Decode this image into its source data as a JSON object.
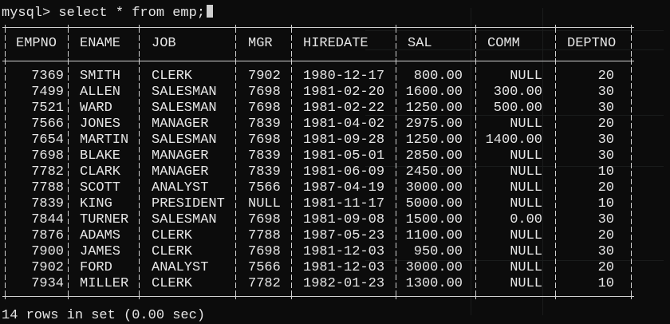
{
  "terminal": {
    "prompt": "mysql> select * from emp;",
    "status": "14 rows in set (0.00 sec)"
  },
  "table": {
    "columns": [
      "EMPNO",
      "ENAME",
      "JOB",
      "MGR",
      "HIREDATE",
      "SAL",
      "COMM",
      "DEPTNO"
    ],
    "rows": [
      [
        "7369",
        "SMITH",
        "CLERK",
        "7902",
        "1980-12-17",
        "800.00",
        "NULL",
        "20"
      ],
      [
        "7499",
        "ALLEN",
        "SALESMAN",
        "7698",
        "1981-02-20",
        "1600.00",
        "300.00",
        "30"
      ],
      [
        "7521",
        "WARD",
        "SALESMAN",
        "7698",
        "1981-02-22",
        "1250.00",
        "500.00",
        "30"
      ],
      [
        "7566",
        "JONES",
        "MANAGER",
        "7839",
        "1981-04-02",
        "2975.00",
        "NULL",
        "20"
      ],
      [
        "7654",
        "MARTIN",
        "SALESMAN",
        "7698",
        "1981-09-28",
        "1250.00",
        "1400.00",
        "30"
      ],
      [
        "7698",
        "BLAKE",
        "MANAGER",
        "7839",
        "1981-05-01",
        "2850.00",
        "NULL",
        "30"
      ],
      [
        "7782",
        "CLARK",
        "MANAGER",
        "7839",
        "1981-06-09",
        "2450.00",
        "NULL",
        "10"
      ],
      [
        "7788",
        "SCOTT",
        "ANALYST",
        "7566",
        "1987-04-19",
        "3000.00",
        "NULL",
        "20"
      ],
      [
        "7839",
        "KING",
        "PRESIDENT",
        "NULL",
        "1981-11-17",
        "5000.00",
        "NULL",
        "10"
      ],
      [
        "7844",
        "TURNER",
        "SALESMAN",
        "7698",
        "1981-09-08",
        "1500.00",
        "0.00",
        "30"
      ],
      [
        "7876",
        "ADAMS",
        "CLERK",
        "7788",
        "1987-05-23",
        "1100.00",
        "NULL",
        "20"
      ],
      [
        "7900",
        "JAMES",
        "CLERK",
        "7698",
        "1981-12-03",
        "950.00",
        "NULL",
        "30"
      ],
      [
        "7902",
        "FORD",
        "ANALYST",
        "7566",
        "1981-12-03",
        "3000.00",
        "NULL",
        "20"
      ],
      [
        "7934",
        "MILLER",
        "CLERK",
        "7782",
        "1982-01-23",
        "1300.00",
        "NULL",
        "10"
      ]
    ]
  },
  "colors": {
    "background": "#0c0c0c",
    "text": "#e6e6e6",
    "border": "#d0d0d0"
  }
}
